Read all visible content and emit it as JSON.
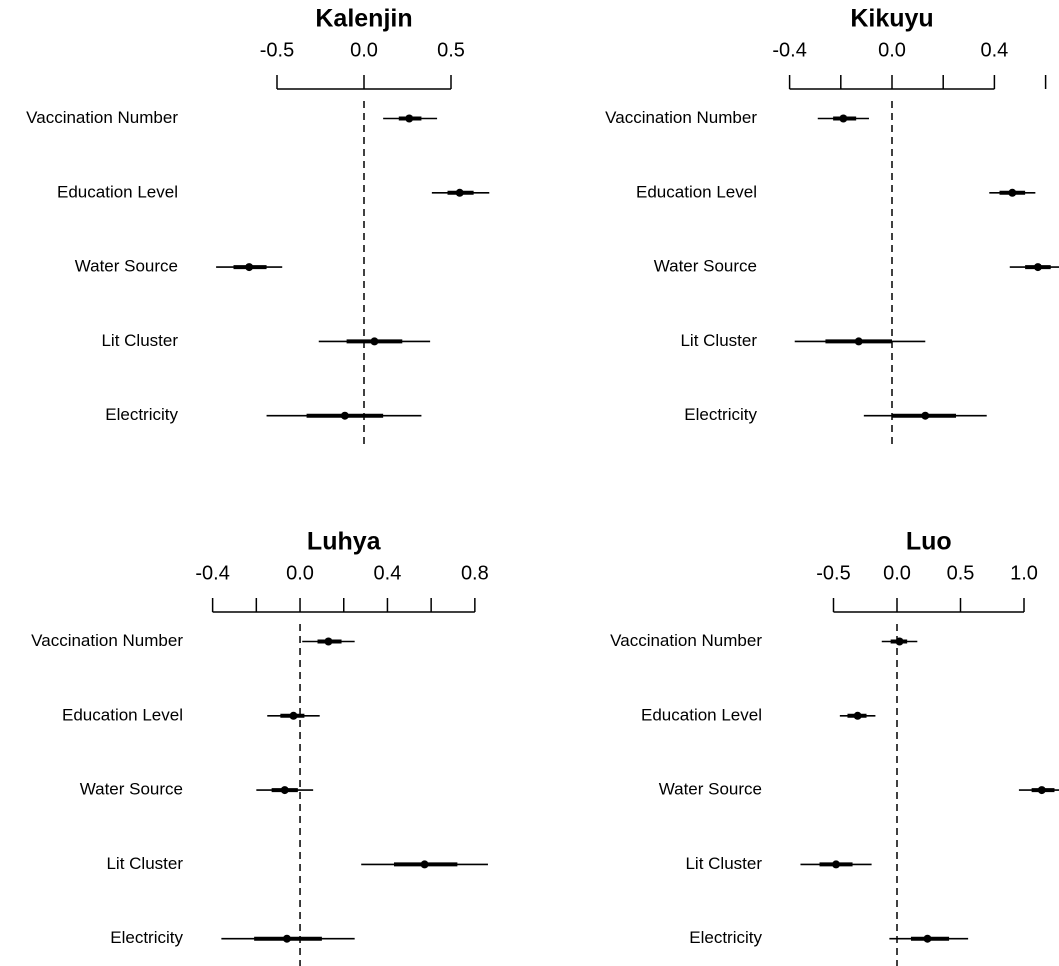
{
  "chart_data": [
    {
      "type": "coefficient",
      "title": "Kalenjin",
      "color": "#000000",
      "categories": [
        "Vaccination Number",
        "Education Level",
        "Water Source",
        "Lit Cluster",
        "Electricity"
      ],
      "values": [
        0.26,
        0.55,
        -0.66,
        0.06,
        -0.11
      ],
      "inner_low": [
        0.2,
        0.48,
        -0.75,
        -0.1,
        -0.33
      ],
      "inner_high": [
        0.33,
        0.63,
        -0.56,
        0.22,
        0.11
      ],
      "outer_low": [
        0.11,
        0.39,
        -0.85,
        -0.26,
        -0.56
      ],
      "outer_high": [
        0.42,
        0.72,
        -0.47,
        0.38,
        0.33
      ],
      "reference_line": 0,
      "xlim": [
        -0.9,
        0.8
      ],
      "xticks": [
        -0.5,
        {
          "value": 0,
          "label": "0.0"
        },
        0.5
      ],
      "xticks_unlabeled": []
    },
    {
      "type": "coefficient",
      "title": "Kikuyu",
      "color": "#000000",
      "categories": [
        "Vaccination Number",
        "Education Level",
        "Water Source",
        "Lit Cluster",
        "Electricity"
      ],
      "values": [
        -0.19,
        0.47,
        0.57,
        -0.13,
        0.13
      ],
      "inner_low": [
        -0.23,
        0.42,
        0.52,
        -0.26,
        0.0
      ],
      "inner_high": [
        -0.14,
        0.52,
        0.62,
        0.0,
        0.25
      ],
      "outer_low": [
        -0.29,
        0.38,
        0.46,
        -0.38,
        -0.11
      ],
      "outer_high": [
        -0.09,
        0.56,
        0.66,
        0.13,
        0.37
      ],
      "reference_line": 0,
      "xlim": [
        -0.45,
        0.65
      ],
      "xticks": [
        -0.4,
        {
          "value": 0,
          "label": "0.0"
        },
        0.4
      ],
      "xticks_unlabeled": [
        -0.2,
        0.2,
        0.6
      ]
    },
    {
      "type": "coefficient",
      "title": "Luhya",
      "color": "#000000",
      "categories": [
        "Vaccination Number",
        "Education Level",
        "Water Source",
        "Lit Cluster",
        "Electricity"
      ],
      "values": [
        0.13,
        -0.03,
        -0.07,
        0.57,
        -0.06
      ],
      "inner_low": [
        0.08,
        -0.09,
        -0.13,
        0.43,
        -0.21
      ],
      "inner_high": [
        0.19,
        0.02,
        -0.01,
        0.72,
        0.1
      ],
      "outer_low": [
        0.01,
        -0.15,
        -0.2,
        0.28,
        -0.36
      ],
      "outer_high": [
        0.25,
        0.09,
        0.06,
        0.86,
        0.25
      ],
      "reference_line": 0,
      "xlim": [
        -0.45,
        0.9
      ],
      "xticks": [
        -0.4,
        {
          "value": 0,
          "label": "0.0"
        },
        0.4,
        0.8
      ],
      "xticks_unlabeled": [
        -0.2,
        0.2,
        0.6
      ]
    },
    {
      "type": "coefficient",
      "title": "Luo",
      "color": "#000000",
      "categories": [
        "Vaccination Number",
        "Education Level",
        "Water Source",
        "Lit Cluster",
        "Electricity"
      ],
      "values": [
        0.02,
        -0.31,
        1.14,
        -0.48,
        0.24
      ],
      "inner_low": [
        -0.05,
        -0.39,
        1.06,
        -0.61,
        0.11
      ],
      "inner_high": [
        0.08,
        -0.24,
        1.24,
        -0.35,
        0.41
      ],
      "outer_low": [
        -0.12,
        -0.45,
        0.96,
        -0.76,
        -0.06
      ],
      "outer_high": [
        0.16,
        -0.17,
        1.32,
        -0.2,
        0.56
      ],
      "reference_line": 0,
      "xlim": [
        -0.6,
        1.3
      ],
      "xticks": [
        -0.5,
        {
          "value": 0,
          "label": "0.0"
        },
        0.5,
        {
          "value": 1,
          "label": "1.0"
        }
      ],
      "xticks_unlabeled": []
    }
  ]
}
